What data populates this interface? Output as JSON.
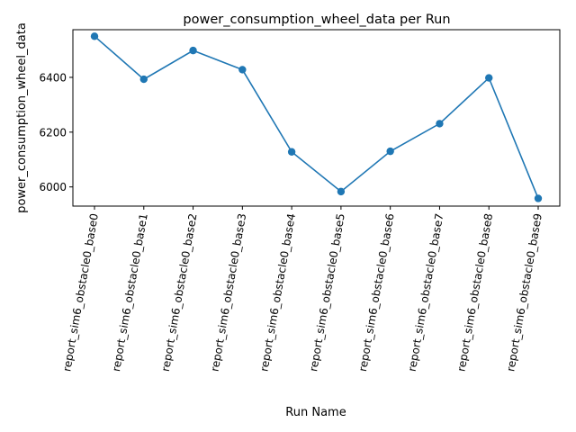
{
  "chart_data": {
    "type": "line",
    "title": "power_consumption_wheel_data per Run",
    "xlabel": "Run Name",
    "ylabel": "power_consumption_wheel_data",
    "categories": [
      "report_sim6_obstacle0_base0",
      "report_sim6_obstacle0_base1",
      "report_sim6_obstacle0_base2",
      "report_sim6_obstacle0_base3",
      "report_sim6_obstacle0_base4",
      "report_sim6_obstacle0_base5",
      "report_sim6_obstacle0_base6",
      "report_sim6_obstacle0_base7",
      "report_sim6_obstacle0_base8",
      "report_sim6_obstacle0_base9"
    ],
    "series": [
      {
        "values": [
          6550,
          6393,
          6498,
          6428,
          6128,
          5983,
          6130,
          6231,
          6398,
          5958
        ],
        "color": "#1f77b4",
        "marker": "circle"
      }
    ],
    "yticks": [
      6000,
      6200,
      6400
    ],
    "ylim": [
      5930,
      6574
    ],
    "grid": false,
    "legend": "none"
  }
}
